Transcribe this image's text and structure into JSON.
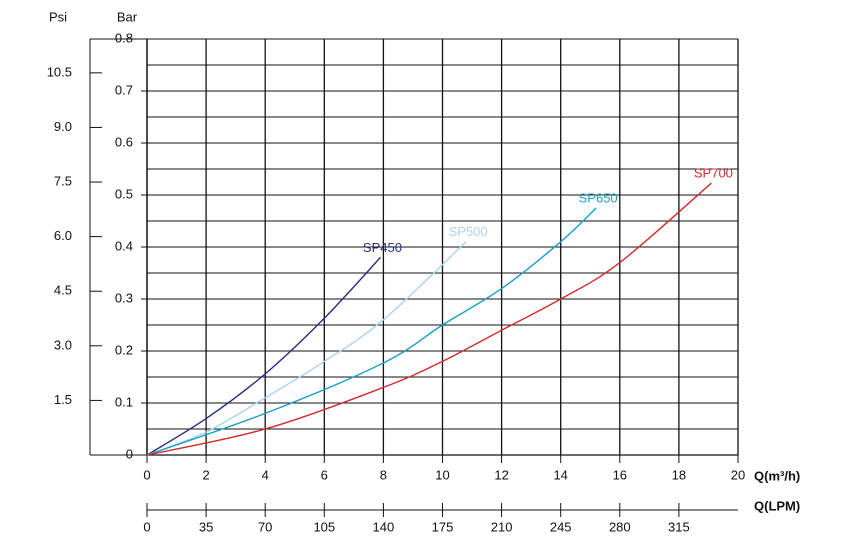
{
  "chart_data": {
    "type": "line",
    "y_label": "Bar",
    "y2_label": "Psi",
    "x_label": "Q(m³/h)",
    "x2_label": "Q(LPM)",
    "xlim": [
      0,
      20
    ],
    "xticks": [
      0,
      2,
      4,
      6,
      8,
      10,
      12,
      14,
      16,
      18,
      20
    ],
    "x2lim": [
      0,
      350
    ],
    "x2ticks": [
      0,
      35,
      70,
      105,
      140,
      175,
      210,
      245,
      280,
      315
    ],
    "ylim": [
      0,
      0.8
    ],
    "yticks": [
      0,
      0.1,
      0.2,
      0.3,
      0.4,
      0.5,
      0.6,
      0.7,
      0.8
    ],
    "yminor_ticks": [
      0.05,
      0.15,
      0.25,
      0.35,
      0.45,
      0.55,
      0.65,
      0.75
    ],
    "y2lim": [
      0,
      11.43
    ],
    "y2ticks": [
      1.5,
      {
        "value": 3,
        "label": "3.0"
      },
      4.5,
      {
        "value": 6,
        "label": "6.0"
      },
      7.5,
      {
        "value": 9,
        "label": "9.0"
      },
      10.5
    ],
    "grid": true,
    "series": [
      {
        "name": "SP450",
        "color": "#2b2f80",
        "x": [
          0,
          2,
          4,
          6,
          7.9
        ],
        "values": [
          0,
          0.07,
          0.156,
          0.263,
          0.38
        ]
      },
      {
        "name": "SP500",
        "color": "#a9d5ea",
        "x": [
          0,
          2,
          4,
          6,
          8,
          10.8
        ],
        "values": [
          0,
          0.044,
          0.11,
          0.18,
          0.26,
          0.41
        ]
      },
      {
        "name": "SP650",
        "color": "#1a9ec8",
        "x": [
          0,
          4,
          8,
          10,
          12,
          14,
          15.2
        ],
        "values": [
          0,
          0.08,
          0.177,
          0.25,
          0.32,
          0.41,
          0.475
        ]
      },
      {
        "name": "SP700",
        "color": "#d42a2e",
        "x": [
          0,
          4,
          8,
          10,
          12,
          14,
          16,
          19.1
        ],
        "values": [
          0,
          0.05,
          0.13,
          0.18,
          0.24,
          0.3,
          0.37,
          0.523
        ]
      }
    ]
  }
}
